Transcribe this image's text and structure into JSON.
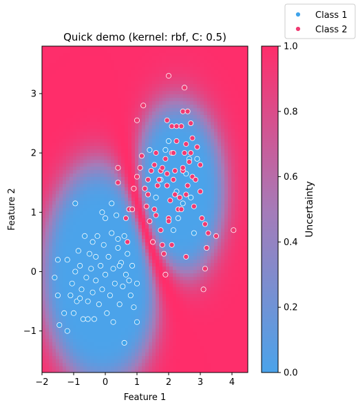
{
  "chart_data": {
    "type": "scatter",
    "title": "Quick demo (kernel: rbf, C: 0.5)",
    "xlabel": "Feature 1",
    "ylabel": "Feature 2",
    "xlim": [
      -2,
      4.5
    ],
    "ylim": [
      -1.7,
      3.8
    ],
    "xticks": [
      "−2",
      "−1",
      "0",
      "1",
      "2",
      "3",
      "4"
    ],
    "yticks": [
      "−1",
      "0",
      "1",
      "2",
      "3"
    ],
    "xtick_values": [
      -2,
      -1,
      0,
      1,
      2,
      3,
      4
    ],
    "ytick_values": [
      -1,
      0,
      1,
      2,
      3
    ],
    "background": "decision-uncertainty heatmap (blue = low, pink = high)",
    "colorbar": {
      "label": "Uncertainty",
      "range": [
        0,
        1
      ],
      "ticks": [
        "0.0",
        "0.2",
        "0.4",
        "0.6",
        "0.8",
        "1.0"
      ],
      "tick_values": [
        0,
        0.2,
        0.4,
        0.6,
        0.8,
        1.0
      ],
      "low_color": "#4ba3ea",
      "mid_color": "#a67bb8",
      "high_color": "#ff2d6a"
    },
    "legend": {
      "placement": "top-right"
    },
    "series": [
      {
        "name": "Class 1",
        "color": "#3fa3ea",
        "points": [
          [
            -1.6,
            -0.1
          ],
          [
            -1.5,
            -0.4
          ],
          [
            -1.45,
            -0.9
          ],
          [
            -1.3,
            -0.7
          ],
          [
            -1.2,
            -1.0
          ],
          [
            -1.2,
            0.2
          ],
          [
            -1.1,
            -0.4
          ],
          [
            -1.05,
            -0.2
          ],
          [
            -1.0,
            -0.7
          ],
          [
            -0.95,
            0.0
          ],
          [
            -0.9,
            -0.5
          ],
          [
            -0.85,
            0.35
          ],
          [
            -0.8,
            0.1
          ],
          [
            -0.75,
            -0.3
          ],
          [
            -0.7,
            -0.8
          ],
          [
            -0.65,
            0.6
          ],
          [
            -0.6,
            -0.1
          ],
          [
            -0.55,
            -0.5
          ],
          [
            -0.5,
            0.3
          ],
          [
            -0.45,
            0.05
          ],
          [
            -0.4,
            -0.35
          ],
          [
            -0.35,
            -0.8
          ],
          [
            -0.3,
            0.25
          ],
          [
            -0.3,
            -0.15
          ],
          [
            -0.25,
            0.6
          ],
          [
            -0.2,
            -0.55
          ],
          [
            -0.15,
            0.1
          ],
          [
            -0.1,
            -0.3
          ],
          [
            -0.05,
            0.45
          ],
          [
            0.0,
            -0.05
          ],
          [
            0.0,
            0.9
          ],
          [
            0.05,
            -0.7
          ],
          [
            0.1,
            0.25
          ],
          [
            0.15,
            -0.4
          ],
          [
            0.2,
            0.65
          ],
          [
            0.25,
            0.05
          ],
          [
            0.3,
            -0.2
          ],
          [
            0.35,
            0.95
          ],
          [
            0.4,
            0.4
          ],
          [
            0.45,
            -0.55
          ],
          [
            0.5,
            0.15
          ],
          [
            0.55,
            -0.25
          ],
          [
            0.6,
            0.6
          ],
          [
            0.65,
            -0.05
          ],
          [
            0.7,
            0.3
          ],
          [
            0.75,
            -0.15
          ],
          [
            0.8,
            -0.4
          ],
          [
            0.85,
            0.1
          ],
          [
            0.9,
            -0.6
          ],
          [
            1.0,
            -0.2
          ],
          [
            -0.1,
            1.0
          ],
          [
            -1.5,
            0.2
          ],
          [
            0.6,
            -1.2
          ],
          [
            1.0,
            -0.85
          ],
          [
            -0.55,
            -0.8
          ],
          [
            0.25,
            -0.85
          ],
          [
            0.45,
            0.1
          ],
          [
            -0.8,
            -0.45
          ],
          [
            -0.95,
            1.15
          ],
          [
            0.2,
            1.15
          ],
          [
            0.4,
            0.55
          ],
          [
            -0.4,
            0.5
          ],
          [
            1.4,
            2.05
          ],
          [
            1.6,
            1.25
          ],
          [
            1.75,
            1.55
          ],
          [
            1.9,
            2.05
          ],
          [
            2.0,
            2.2
          ],
          [
            2.15,
            0.7
          ],
          [
            2.25,
            1.35
          ],
          [
            2.3,
            0.9
          ],
          [
            2.45,
            1.15
          ],
          [
            2.55,
            1.65
          ],
          [
            2.7,
            1.25
          ],
          [
            2.8,
            0.65
          ],
          [
            2.9,
            1.9
          ],
          [
            2.65,
            1.9
          ]
        ]
      },
      {
        "name": "Class 2",
        "color": "#f03a72",
        "points": [
          [
            0.4,
            1.75
          ],
          [
            0.4,
            1.5
          ],
          [
            0.65,
            0.9
          ],
          [
            0.7,
            0.5
          ],
          [
            0.75,
            1.05
          ],
          [
            0.85,
            1.05
          ],
          [
            0.9,
            1.4
          ],
          [
            1.0,
            1.6
          ],
          [
            1.1,
            1.75
          ],
          [
            1.15,
            1.95
          ],
          [
            1.25,
            1.4
          ],
          [
            1.3,
            1.1
          ],
          [
            1.35,
            1.3
          ],
          [
            1.4,
            0.85
          ],
          [
            1.45,
            1.7
          ],
          [
            1.55,
            1.8
          ],
          [
            1.6,
            0.95
          ],
          [
            1.65,
            1.45
          ],
          [
            1.7,
            1.55
          ],
          [
            1.75,
            1.7
          ],
          [
            1.8,
            0.45
          ],
          [
            1.9,
            1.9
          ],
          [
            1.95,
            1.65
          ],
          [
            2.0,
            0.9
          ],
          [
            2.05,
            1.2
          ],
          [
            2.1,
            2.0
          ],
          [
            2.15,
            1.55
          ],
          [
            2.2,
            1.7
          ],
          [
            2.3,
            1.05
          ],
          [
            2.35,
            1.25
          ],
          [
            2.45,
            1.7
          ],
          [
            2.5,
            2.0
          ],
          [
            2.55,
            1.3
          ],
          [
            2.6,
            1.45
          ],
          [
            2.65,
            1.85
          ],
          [
            2.7,
            2.0
          ],
          [
            2.75,
            1.6
          ],
          [
            2.8,
            1.1
          ],
          [
            2.9,
            2.1
          ],
          [
            3.0,
            1.8
          ],
          [
            3.05,
            0.9
          ],
          [
            3.15,
            0.8
          ],
          [
            3.2,
            0.4
          ],
          [
            3.25,
            0.65
          ],
          [
            3.1,
            -0.3
          ],
          [
            3.15,
            0.05
          ],
          [
            3.5,
            0.6
          ],
          [
            4.05,
            0.7
          ],
          [
            1.8,
            1.75
          ],
          [
            2.25,
            2.2
          ],
          [
            2.4,
            2.45
          ],
          [
            2.45,
            2.7
          ],
          [
            2.5,
            3.1
          ],
          [
            2.6,
            2.7
          ],
          [
            1.0,
            2.55
          ],
          [
            1.2,
            2.8
          ],
          [
            1.95,
            2.55
          ],
          [
            2.0,
            3.3
          ],
          [
            2.1,
            2.45
          ],
          [
            2.25,
            2.45
          ],
          [
            2.7,
            2.5
          ],
          [
            2.45,
            1.75
          ],
          [
            2.55,
            2.15
          ],
          [
            1.5,
            0.5
          ],
          [
            1.75,
            0.7
          ],
          [
            2.1,
            0.45
          ],
          [
            2.55,
            0.25
          ],
          [
            1.85,
            0.3
          ],
          [
            1.9,
            -0.05
          ],
          [
            1.55,
            1.05
          ],
          [
            1.35,
            1.55
          ],
          [
            3.0,
            1.35
          ],
          [
            2.2,
            1.3
          ],
          [
            1.95,
            1.45
          ],
          [
            2.85,
            1.55
          ],
          [
            2.0,
            0.85
          ],
          [
            1.6,
            2.0
          ],
          [
            2.4,
            1.05
          ],
          [
            2.15,
            2.0
          ],
          [
            2.75,
            2.25
          ]
        ]
      }
    ]
  }
}
